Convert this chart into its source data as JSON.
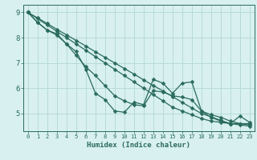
{
  "xlabel": "Humidex (Indice chaleur)",
  "bg_color": "#d8f0f0",
  "grid_color": "#b8dada",
  "line_color": "#2a6b5e",
  "x_values": [
    0,
    1,
    2,
    3,
    4,
    5,
    6,
    7,
    8,
    9,
    10,
    11,
    12,
    13,
    14,
    15,
    16,
    17,
    18,
    19,
    20,
    21,
    22,
    23
  ],
  "line_straight1": [
    9.0,
    8.78,
    8.56,
    8.33,
    8.11,
    7.89,
    7.67,
    7.44,
    7.22,
    7.0,
    6.78,
    6.56,
    6.33,
    6.11,
    5.89,
    5.67,
    5.44,
    5.22,
    5.0,
    4.87,
    4.73,
    4.6,
    4.6,
    4.6
  ],
  "line_straight2": [
    9.0,
    8.75,
    8.5,
    8.25,
    8.0,
    7.75,
    7.5,
    7.25,
    7.0,
    6.75,
    6.5,
    6.25,
    6.0,
    5.75,
    5.5,
    5.25,
    5.1,
    4.95,
    4.8,
    4.7,
    4.65,
    4.6,
    4.55,
    4.5
  ],
  "line_jagged1": [
    9.0,
    8.6,
    8.3,
    8.1,
    7.75,
    7.3,
    6.85,
    6.5,
    6.1,
    5.7,
    5.5,
    5.35,
    5.3,
    5.9,
    5.85,
    5.7,
    5.65,
    5.55,
    5.1,
    4.95,
    4.85,
    4.7,
    4.6,
    4.55
  ],
  "line_jagged2": [
    9.0,
    8.6,
    8.3,
    8.15,
    7.75,
    7.45,
    6.75,
    5.8,
    5.55,
    5.1,
    5.05,
    5.45,
    5.35,
    6.35,
    6.2,
    5.8,
    6.2,
    6.25,
    5.1,
    4.85,
    4.7,
    4.6,
    4.9,
    4.65
  ],
  "yticks": [
    5,
    6,
    7,
    8,
    9
  ],
  "ylim": [
    4.3,
    9.3
  ],
  "xlim": [
    -0.5,
    23.5
  ]
}
